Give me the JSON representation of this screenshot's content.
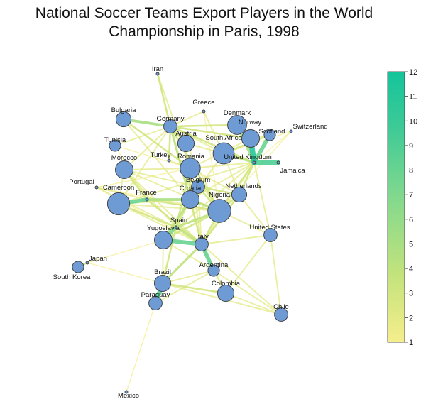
{
  "title": {
    "line1": "National Soccer Teams Export Players in the World",
    "line2": "Championship in Paris, 1998"
  },
  "colorbar": {
    "min": 1,
    "max": 12,
    "ticks": [
      1,
      2,
      3,
      4,
      5,
      6,
      7,
      8,
      9,
      10,
      11,
      12
    ],
    "colors": [
      "#f5ee8c",
      "#c3e37c",
      "#7fd88e",
      "#3cca97",
      "#14c49a"
    ]
  },
  "edge_color_scale": "colorbar",
  "node_color": "#6e9bd4",
  "nodes": [
    {
      "id": "Iran",
      "size": 1
    },
    {
      "id": "Greece",
      "size": 1
    },
    {
      "id": "Bulgaria",
      "size": 4
    },
    {
      "id": "Germany",
      "size": 3
    },
    {
      "id": "Denmark",
      "size": 7
    },
    {
      "id": "Norway",
      "size": 6
    },
    {
      "id": "Switzerland",
      "size": 1
    },
    {
      "id": "Scotland",
      "size": 2
    },
    {
      "id": "Tunisia",
      "size": 2
    },
    {
      "id": "Austria",
      "size": 5
    },
    {
      "id": "South Africa",
      "size": 9
    },
    {
      "id": "United Kingdom",
      "size": 1
    },
    {
      "id": "Jamaica",
      "size": 1
    },
    {
      "id": "Turkey",
      "size": 1
    },
    {
      "id": "Romania",
      "size": 8
    },
    {
      "id": "Morocco",
      "size": 6
    },
    {
      "id": "Belgium",
      "size": 3
    },
    {
      "id": "Portugal",
      "size": 1
    },
    {
      "id": "Netherlands",
      "size": 4
    },
    {
      "id": "Cameroon",
      "size": 10
    },
    {
      "id": "France",
      "size": 1
    },
    {
      "id": "Croatia",
      "size": 6
    },
    {
      "id": "Nigeria",
      "size": 11
    },
    {
      "id": "Spain",
      "size": 1
    },
    {
      "id": "Yugoslavia",
      "size": 6
    },
    {
      "id": "United States",
      "size": 3
    },
    {
      "id": "Italy",
      "size": 3
    },
    {
      "id": "Japan",
      "size": 1
    },
    {
      "id": "South Korea",
      "size": 2
    },
    {
      "id": "Argentina",
      "size": 2
    },
    {
      "id": "Brazil",
      "size": 5
    },
    {
      "id": "Colombia",
      "size": 5
    },
    {
      "id": "Paraguay",
      "size": 3
    },
    {
      "id": "Chile",
      "size": 3
    },
    {
      "id": "Mexico",
      "size": 1
    }
  ],
  "edges": [
    {
      "source": "Iran",
      "target": "Germany",
      "weight": 3
    },
    {
      "source": "Iran",
      "target": "Romania",
      "weight": 2
    },
    {
      "source": "Bulgaria",
      "target": "Germany",
      "weight": 5
    },
    {
      "source": "Bulgaria",
      "target": "Romania",
      "weight": 3
    },
    {
      "source": "Bulgaria",
      "target": "Croatia",
      "weight": 2
    },
    {
      "source": "Germany",
      "target": "Denmark",
      "weight": 3
    },
    {
      "source": "Germany",
      "target": "Norway",
      "weight": 3
    },
    {
      "source": "Germany",
      "target": "United Kingdom",
      "weight": 3
    },
    {
      "source": "Germany",
      "target": "Croatia",
      "weight": 4
    },
    {
      "source": "Germany",
      "target": "Nigeria",
      "weight": 3
    },
    {
      "source": "Germany",
      "target": "Tunisia",
      "weight": 2
    },
    {
      "source": "Germany",
      "target": "Morocco",
      "weight": 2
    },
    {
      "source": "Germany",
      "target": "Austria",
      "weight": 3
    },
    {
      "source": "Germany",
      "target": "South Africa",
      "weight": 2
    },
    {
      "source": "Germany",
      "target": "Cameroon",
      "weight": 2
    },
    {
      "source": "Germany",
      "target": "Italy",
      "weight": 2
    },
    {
      "source": "Greece",
      "target": "Germany",
      "weight": 2
    },
    {
      "source": "Greece",
      "target": "South Africa",
      "weight": 2
    },
    {
      "source": "Greece",
      "target": "Nigeria",
      "weight": 1
    },
    {
      "source": "Denmark",
      "target": "United Kingdom",
      "weight": 5
    },
    {
      "source": "Denmark",
      "target": "Norway",
      "weight": 3
    },
    {
      "source": "Norway",
      "target": "United Kingdom",
      "weight": 11
    },
    {
      "source": "Norway",
      "target": "Romania",
      "weight": 2
    },
    {
      "source": "Scotland",
      "target": "United Kingdom",
      "weight": 8
    },
    {
      "source": "Scotland",
      "target": "South Africa",
      "weight": 3
    },
    {
      "source": "Scotland",
      "target": "Norway",
      "weight": 2
    },
    {
      "source": "Switzerland",
      "target": "United Kingdom",
      "weight": 1
    },
    {
      "source": "Switzerland",
      "target": "South Africa",
      "weight": 1
    },
    {
      "source": "Switzerland",
      "target": "Nigeria",
      "weight": 1
    },
    {
      "source": "Jamaica",
      "target": "United Kingdom",
      "weight": 9
    },
    {
      "source": "Austria",
      "target": "South Africa",
      "weight": 2
    },
    {
      "source": "Austria",
      "target": "Croatia",
      "weight": 2
    },
    {
      "source": "Austria",
      "target": "Nigeria",
      "weight": 2
    },
    {
      "source": "South Africa",
      "target": "United Kingdom",
      "weight": 4
    },
    {
      "source": "South Africa",
      "target": "Netherlands",
      "weight": 2
    },
    {
      "source": "South Africa",
      "target": "Croatia",
      "weight": 2
    },
    {
      "source": "United Kingdom",
      "target": "Nigeria",
      "weight": 3
    },
    {
      "source": "United Kingdom",
      "target": "Netherlands",
      "weight": 3
    },
    {
      "source": "United Kingdom",
      "target": "Romania",
      "weight": 2
    },
    {
      "source": "United Kingdom",
      "target": "Cameroon",
      "weight": 2
    },
    {
      "source": "United Kingdom",
      "target": "Croatia",
      "weight": 2
    },
    {
      "source": "United Kingdom",
      "target": "Italy",
      "weight": 2
    },
    {
      "source": "United Kingdom",
      "target": "Yugoslavia",
      "weight": 2
    },
    {
      "source": "United Kingdom",
      "target": "United States",
      "weight": 2
    },
    {
      "source": "Tunisia",
      "target": "Romania",
      "weight": 1
    },
    {
      "source": "Tunisia",
      "target": "France",
      "weight": 1
    },
    {
      "source": "Turkey",
      "target": "Germany",
      "weight": 3
    },
    {
      "source": "Turkey",
      "target": "Romania",
      "weight": 2
    },
    {
      "source": "Morocco",
      "target": "Romania",
      "weight": 2
    },
    {
      "source": "Morocco",
      "target": "France",
      "weight": 3
    },
    {
      "source": "Morocco",
      "target": "Cameroon",
      "weight": 2
    },
    {
      "source": "Morocco",
      "target": "Nigeria",
      "weight": 2
    },
    {
      "source": "Morocco",
      "target": "Italy",
      "weight": 2
    },
    {
      "source": "Morocco",
      "target": "Spain",
      "weight": 2
    },
    {
      "source": "Romania",
      "target": "Croatia",
      "weight": 3
    },
    {
      "source": "Romania",
      "target": "Spain",
      "weight": 3
    },
    {
      "source": "Romania",
      "target": "Nigeria",
      "weight": 2
    },
    {
      "source": "Romania",
      "target": "Italy",
      "weight": 2
    },
    {
      "source": "Romania",
      "target": "Netherlands",
      "weight": 2
    },
    {
      "source": "Belgium",
      "target": "Nigeria",
      "weight": 3
    },
    {
      "source": "Belgium",
      "target": "Netherlands",
      "weight": 3
    },
    {
      "source": "Belgium",
      "target": "Croatia",
      "weight": 3
    },
    {
      "source": "Belgium",
      "target": "Yugoslavia",
      "weight": 2
    },
    {
      "source": "Belgium",
      "target": "Morocco",
      "weight": 2
    },
    {
      "source": "Belgium",
      "target": "Italy",
      "weight": 2
    },
    {
      "source": "Portugal",
      "target": "France",
      "weight": 2
    },
    {
      "source": "Portugal",
      "target": "Spain",
      "weight": 2
    },
    {
      "source": "Portugal",
      "target": "Romania",
      "weight": 1
    },
    {
      "source": "Portugal",
      "target": "Nigeria",
      "weight": 1
    },
    {
      "source": "Portugal",
      "target": "Italy",
      "weight": 1
    },
    {
      "source": "Cameroon",
      "target": "France",
      "weight": 8
    },
    {
      "source": "Cameroon",
      "target": "Spain",
      "weight": 3
    },
    {
      "source": "Cameroon",
      "target": "Italy",
      "weight": 2
    },
    {
      "source": "Cameroon",
      "target": "Nigeria",
      "weight": 2
    },
    {
      "source": "Cameroon",
      "target": "Croatia",
      "weight": 2
    },
    {
      "source": "France",
      "target": "Croatia",
      "weight": 5
    },
    {
      "source": "France",
      "target": "Nigeria",
      "weight": 3
    },
    {
      "source": "France",
      "target": "Italy",
      "weight": 3
    },
    {
      "source": "Croatia",
      "target": "Nigeria",
      "weight": 4
    },
    {
      "source": "Croatia",
      "target": "Italy",
      "weight": 3
    },
    {
      "source": "Croatia",
      "target": "Spain",
      "weight": 3
    },
    {
      "source": "Croatia",
      "target": "Yugoslavia",
      "weight": 4
    },
    {
      "source": "Nigeria",
      "target": "Netherlands",
      "weight": 3
    },
    {
      "source": "Nigeria",
      "target": "Spain",
      "weight": 4
    },
    {
      "source": "Nigeria",
      "target": "Italy",
      "weight": 3
    },
    {
      "source": "Nigeria",
      "target": "Yugoslavia",
      "weight": 3
    },
    {
      "source": "Nigeria",
      "target": "United States",
      "weight": 2
    },
    {
      "source": "Netherlands",
      "target": "Italy",
      "weight": 3
    },
    {
      "source": "Netherlands",
      "target": "United States",
      "weight": 2
    },
    {
      "source": "Spain",
      "target": "Yugoslavia",
      "weight": 7
    },
    {
      "source": "Spain",
      "target": "Italy",
      "weight": 4
    },
    {
      "source": "Spain",
      "target": "Brazil",
      "weight": 3
    },
    {
      "source": "Yugoslavia",
      "target": "Italy",
      "weight": 8
    },
    {
      "source": "Yugoslavia",
      "target": "Brazil",
      "weight": 2
    },
    {
      "source": "Yugoslavia",
      "target": "Japan",
      "weight": 1
    },
    {
      "source": "Yugoslavia",
      "target": "Argentina",
      "weight": 2
    },
    {
      "source": "Italy",
      "target": "Argentina",
      "weight": 8
    },
    {
      "source": "Italy",
      "target": "Brazil",
      "weight": 4
    },
    {
      "source": "Italy",
      "target": "Colombia",
      "weight": 2
    },
    {
      "source": "Italy",
      "target": "Chile",
      "weight": 2
    },
    {
      "source": "Italy",
      "target": "United States",
      "weight": 2
    },
    {
      "source": "Japan",
      "target": "South Korea",
      "weight": 3
    },
    {
      "source": "Japan",
      "target": "Brazil",
      "weight": 1
    },
    {
      "source": "Argentina",
      "target": "Chile",
      "weight": 2
    },
    {
      "source": "Argentina",
      "target": "Brazil",
      "weight": 2
    },
    {
      "source": "Argentina",
      "target": "Colombia",
      "weight": 2
    },
    {
      "source": "Brazil",
      "target": "Paraguay",
      "weight": 9
    },
    {
      "source": "Brazil",
      "target": "Colombia",
      "weight": 3
    },
    {
      "source": "Brazil",
      "target": "Chile",
      "weight": 2
    },
    {
      "source": "United States",
      "target": "Chile",
      "weight": 2
    },
    {
      "source": "United States",
      "target": "Colombia",
      "weight": 2
    },
    {
      "source": "Paraguay",
      "target": "Mexico",
      "weight": 1
    },
    {
      "source": "Paraguay",
      "target": "Argentina",
      "weight": 2
    },
    {
      "source": "Chile",
      "target": "Colombia",
      "weight": 2
    }
  ]
}
